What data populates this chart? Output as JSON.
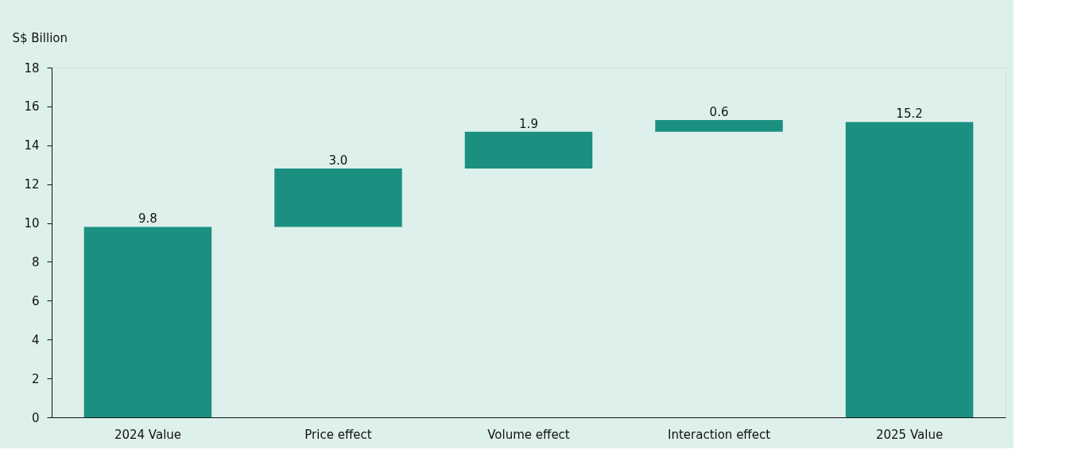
{
  "chart_data": {
    "type": "bar",
    "ylabel": "S$ Billion",
    "categories": [
      "2024 Value",
      "Price effect",
      "Volume effect",
      "Interaction effect",
      "2025 Value"
    ],
    "values": [
      9.8,
      3.0,
      1.9,
      0.6,
      15.2
    ],
    "base": [
      0,
      9.8,
      12.8,
      14.7,
      0
    ],
    "value_labels": [
      "9.8",
      "3.0",
      "1.9",
      "0.6",
      "15.2"
    ],
    "color": "#1b9080",
    "ylim": [
      0,
      18
    ],
    "yticks": [
      0,
      2,
      4,
      6,
      8,
      10,
      12,
      14,
      16,
      18
    ],
    "grid": false
  }
}
